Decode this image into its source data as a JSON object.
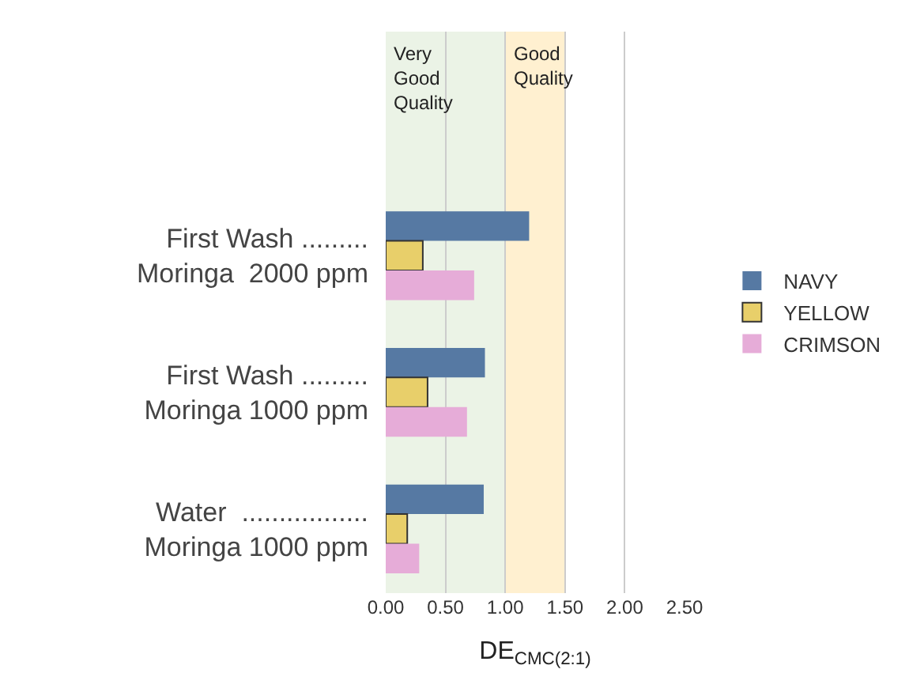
{
  "chart_data": {
    "type": "bar",
    "orientation": "horizontal",
    "categories": [
      "First Wash .........\nMoringa  2000 ppm",
      "First Wash .........\nMoringa 1000 ppm",
      "Water  .................\nMoringa 1000 ppm"
    ],
    "series": [
      {
        "name": "NAVY",
        "color": "#5679a3",
        "values": [
          1.2,
          0.83,
          0.82
        ]
      },
      {
        "name": "YELLOW",
        "color": "#e8cf6a",
        "values": [
          0.31,
          0.35,
          0.18
        ]
      },
      {
        "name": "CRIMSON",
        "color": "#e6acd8",
        "values": [
          0.74,
          0.68,
          0.28
        ]
      }
    ],
    "xlabel": "DE$_{CMC(2:1)}$",
    "xlim": [
      0,
      2.5
    ],
    "xticks": [
      {
        "value": 0,
        "label": "0.00"
      },
      {
        "value": 0.5,
        "label": "0.50"
      },
      {
        "value": 1,
        "label": "1.00"
      },
      {
        "value": 1.5,
        "label": "1.50"
      },
      {
        "value": 2,
        "label": "2.00"
      },
      {
        "value": 2.5,
        "label": "2.50"
      }
    ],
    "bands": [
      {
        "axis": "x",
        "from": 0,
        "to": 1,
        "label": "Very Good Quality",
        "color": "#ebf3e6"
      },
      {
        "axis": "x",
        "from": 1,
        "to": 1.5,
        "label": "Good Quality",
        "color": "#fff0d0"
      }
    ],
    "grid": "x",
    "legend": "right"
  }
}
